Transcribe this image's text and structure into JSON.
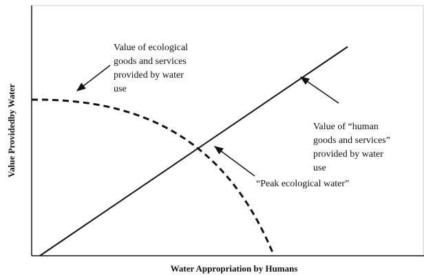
{
  "axes": {
    "y_label": "Value Providedby Water",
    "x_label": "Water Appropriation by Humans"
  },
  "annotations": [
    {
      "lines": [
        "Value of ecological",
        "goods and services",
        "provided by water",
        "use"
      ]
    },
    {
      "lines": [
        "Value of “human",
        "goods and services”",
        "provided by water",
        "use"
      ]
    },
    {
      "lines": [
        "“Peak ecological water”"
      ]
    }
  ]
}
